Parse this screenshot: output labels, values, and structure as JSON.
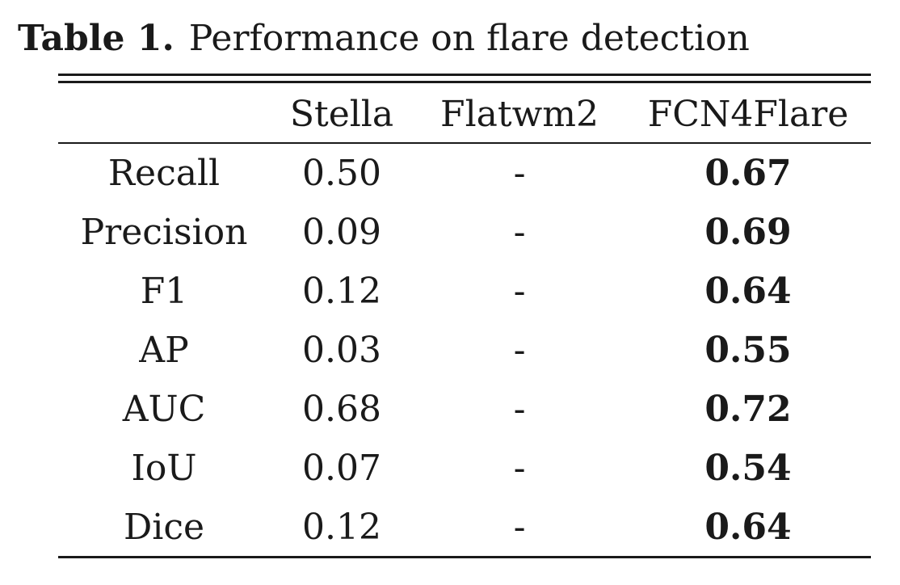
{
  "caption": {
    "label": "Table 1.",
    "text": "Performance on flare detection"
  },
  "table": {
    "columns": [
      "",
      "Stella",
      "Flatwm2",
      "FCN4Flare"
    ],
    "rows": [
      {
        "metric": "Recall",
        "stella": "0.50",
        "flatwm2": "-",
        "fcn4flare": "0.67"
      },
      {
        "metric": "Precision",
        "stella": "0.09",
        "flatwm2": "-",
        "fcn4flare": "0.69"
      },
      {
        "metric": "F1",
        "stella": "0.12",
        "flatwm2": "-",
        "fcn4flare": "0.64"
      },
      {
        "metric": "AP",
        "stella": "0.03",
        "flatwm2": "-",
        "fcn4flare": "0.55"
      },
      {
        "metric": "AUC",
        "stella": "0.68",
        "flatwm2": "-",
        "fcn4flare": "0.72"
      },
      {
        "metric": "IoU",
        "stella": "0.07",
        "flatwm2": "-",
        "fcn4flare": "0.54"
      },
      {
        "metric": "Dice",
        "stella": "0.12",
        "flatwm2": "-",
        "fcn4flare": "0.64"
      }
    ],
    "best_column": "FCN4Flare"
  }
}
